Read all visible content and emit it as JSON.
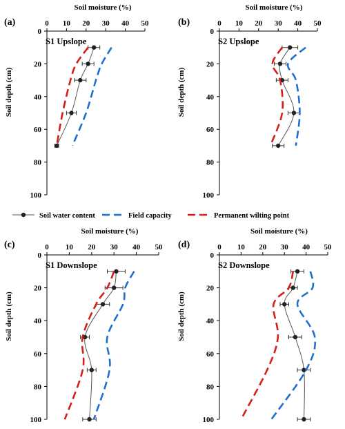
{
  "figure_title": "",
  "legend": {
    "swc": "Soil water content",
    "fc": "Field capacity",
    "pwp": "Permanent wilting point"
  },
  "colors": {
    "swc": "#222222",
    "fc": "#1f6fd1",
    "pwp": "#d81b1b"
  },
  "chart_data": [
    {
      "type": "line",
      "panel_label": "(a)",
      "title": "S1 Upslope",
      "xlabel": "Soil moisture (%)",
      "ylabel": "Soil depth (cm)",
      "xlim": [
        0,
        50
      ],
      "ylim": [
        0,
        100
      ],
      "x_ticks": [
        0,
        10,
        20,
        30,
        40,
        50
      ],
      "y_ticks": [
        0,
        20,
        40,
        60,
        80,
        100
      ],
      "y_inverted": true,
      "series": [
        {
          "name": "Soil water content",
          "points": [
            [
              24,
              10
            ],
            [
              21,
              20
            ],
            [
              17,
              30
            ],
            [
              12.5,
              50
            ],
            [
              5,
              70
            ]
          ],
          "err": [
            3,
            3,
            3,
            2.5,
            1
          ]
        },
        {
          "name": "Field capacity",
          "points": [
            [
              33,
              10
            ],
            [
              28,
              20
            ],
            [
              25,
              30
            ],
            [
              20,
              50
            ],
            [
              13,
              70
            ]
          ]
        },
        {
          "name": "Permanent wilting point",
          "points": [
            [
              21,
              10
            ],
            [
              15,
              20
            ],
            [
              12,
              30
            ],
            [
              8,
              50
            ],
            [
              5,
              70
            ]
          ]
        }
      ]
    },
    {
      "type": "line",
      "panel_label": "(b)",
      "title": "S2 Upslope",
      "xlabel": "Soil moisture (%)",
      "ylabel": "Soil depth (cm)",
      "xlim": [
        0,
        50
      ],
      "ylim": [
        0,
        100
      ],
      "x_ticks": [
        0,
        10,
        20,
        30,
        40,
        50
      ],
      "y_ticks": [
        0,
        20,
        40,
        60,
        80,
        100
      ],
      "y_inverted": true,
      "series": [
        {
          "name": "Soil water content",
          "points": [
            [
              36,
              10
            ],
            [
              31,
              20
            ],
            [
              32,
              30
            ],
            [
              38,
              50
            ],
            [
              30,
              70
            ]
          ],
          "err": [
            4,
            3,
            3,
            3,
            3
          ]
        },
        {
          "name": "Field capacity",
          "points": [
            [
              44,
              10
            ],
            [
              35,
              20
            ],
            [
              39,
              30
            ],
            [
              41,
              50
            ],
            [
              39,
              70
            ]
          ]
        },
        {
          "name": "Permanent wilting point",
          "points": [
            [
              32,
              10
            ],
            [
              27,
              20
            ],
            [
              31,
              30
            ],
            [
              32,
              50
            ],
            [
              26,
              70
            ]
          ]
        }
      ]
    },
    {
      "type": "line",
      "panel_label": "(c)",
      "title": "S1 Downslope",
      "xlabel": "Soil moisture (%)",
      "ylabel": "Soil depth (cm)",
      "xlim": [
        0,
        50
      ],
      "ylim": [
        0,
        100
      ],
      "x_ticks": [
        0,
        10,
        20,
        30,
        40,
        50
      ],
      "y_ticks": [
        0,
        20,
        40,
        60,
        80,
        100
      ],
      "y_inverted": true,
      "series": [
        {
          "name": "Soil water content",
          "points": [
            [
              31,
              10
            ],
            [
              30,
              20
            ],
            [
              25,
              30
            ],
            [
              17,
              50
            ],
            [
              20,
              70
            ],
            [
              19,
              100
            ]
          ],
          "err": [
            4,
            4,
            3,
            2,
            2,
            3
          ]
        },
        {
          "name": "Field capacity",
          "points": [
            [
              39,
              10
            ],
            [
              35,
              20
            ],
            [
              34,
              30
            ],
            [
              27,
              50
            ],
            [
              28,
              70
            ],
            [
              21,
              100
            ]
          ]
        },
        {
          "name": "Permanent wilting point",
          "points": [
            [
              30,
              10
            ],
            [
              27,
              20
            ],
            [
              22,
              30
            ],
            [
              16,
              50
            ],
            [
              16,
              70
            ],
            [
              8,
              100
            ]
          ]
        }
      ]
    },
    {
      "type": "line",
      "panel_label": "(d)",
      "title": "S2 Downslope",
      "xlabel": "Soil moisture (%)",
      "ylabel": "Soil depth (cm)",
      "xlim": [
        0,
        50
      ],
      "ylim": [
        0,
        100
      ],
      "x_ticks": [
        0,
        10,
        20,
        30,
        40,
        50
      ],
      "y_ticks": [
        0,
        20,
        40,
        60,
        80,
        100
      ],
      "y_inverted": true,
      "series": [
        {
          "name": "Soil water content",
          "points": [
            [
              36,
              10
            ],
            [
              34,
              20
            ],
            [
              30,
              30
            ],
            [
              35,
              50
            ],
            [
              39,
              70
            ],
            [
              39,
              100
            ]
          ],
          "err": [
            3,
            2,
            2,
            3,
            3,
            3
          ]
        },
        {
          "name": "Field capacity",
          "points": [
            [
              42,
              10
            ],
            [
              43,
              20
            ],
            [
              36,
              30
            ],
            [
              44,
              50
            ],
            [
              40,
              70
            ],
            [
              24,
              100
            ]
          ]
        },
        {
          "name": "Permanent wilting point",
          "points": [
            [
              34,
              10
            ],
            [
              32,
              20
            ],
            [
              25,
              30
            ],
            [
              27,
              50
            ],
            [
              22,
              70
            ],
            [
              10,
              100
            ]
          ]
        }
      ]
    }
  ]
}
